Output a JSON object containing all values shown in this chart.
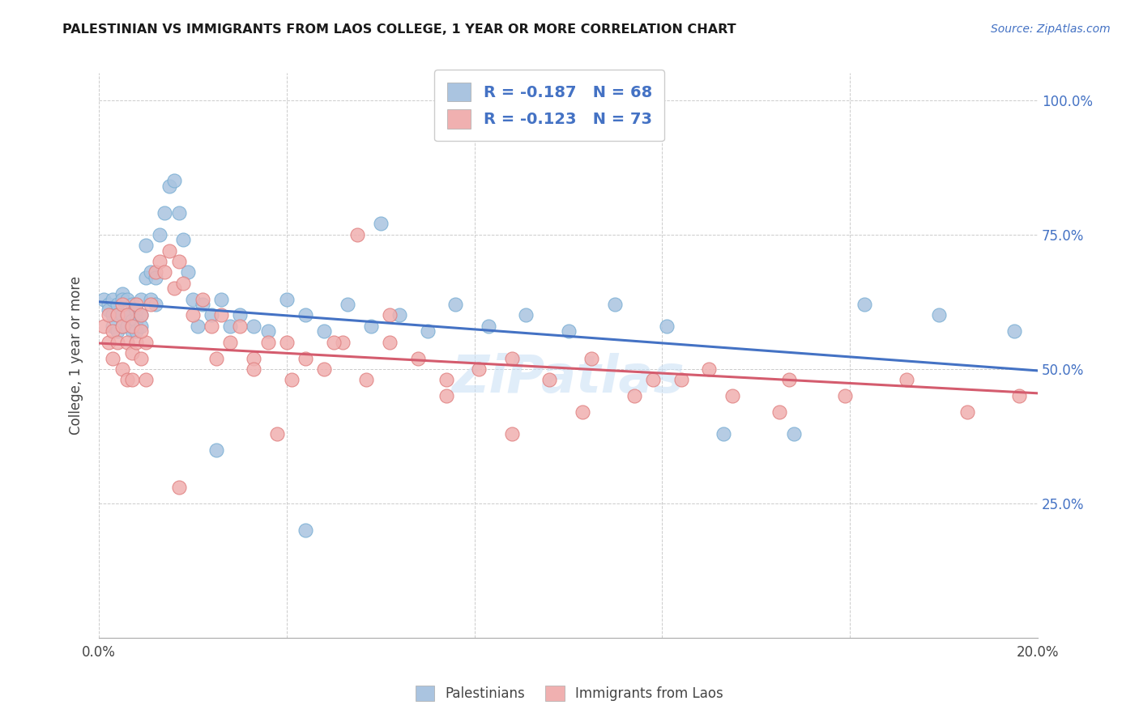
{
  "title": "PALESTINIAN VS IMMIGRANTS FROM LAOS COLLEGE, 1 YEAR OR MORE CORRELATION CHART",
  "source": "Source: ZipAtlas.com",
  "ylabel": "College, 1 year or more",
  "xlim": [
    0.0,
    0.2
  ],
  "ylim": [
    0.0,
    1.05
  ],
  "blue_fill": "#aac4e0",
  "blue_edge": "#7aafd4",
  "pink_fill": "#f0b0b0",
  "pink_edge": "#e08080",
  "blue_line": "#4472c4",
  "pink_line": "#d45c6e",
  "legend_label_blue": "Palestinians",
  "legend_label_pink": "Immigrants from Laos",
  "legend_R_blue": "-0.187",
  "legend_N_blue": "68",
  "legend_R_pink": "-0.123",
  "legend_N_pink": "73",
  "blue_trend_x0": 0.0,
  "blue_trend_y0": 0.625,
  "blue_trend_x1": 0.2,
  "blue_trend_y1": 0.497,
  "pink_trend_x0": 0.0,
  "pink_trend_y0": 0.548,
  "pink_trend_x1": 0.2,
  "pink_trend_y1": 0.455,
  "blue_x": [
    0.001,
    0.002,
    0.002,
    0.003,
    0.003,
    0.003,
    0.004,
    0.004,
    0.004,
    0.005,
    0.005,
    0.005,
    0.005,
    0.006,
    0.006,
    0.006,
    0.007,
    0.007,
    0.007,
    0.008,
    0.008,
    0.008,
    0.009,
    0.009,
    0.009,
    0.01,
    0.01,
    0.011,
    0.011,
    0.012,
    0.012,
    0.013,
    0.014,
    0.015,
    0.016,
    0.017,
    0.018,
    0.019,
    0.02,
    0.021,
    0.022,
    0.024,
    0.026,
    0.028,
    0.03,
    0.033,
    0.036,
    0.04,
    0.044,
    0.048,
    0.053,
    0.058,
    0.064,
    0.07,
    0.076,
    0.083,
    0.091,
    0.1,
    0.11,
    0.121,
    0.133,
    0.148,
    0.163,
    0.179,
    0.195,
    0.044,
    0.025,
    0.06
  ],
  "blue_y": [
    0.63,
    0.62,
    0.61,
    0.63,
    0.6,
    0.58,
    0.62,
    0.6,
    0.57,
    0.64,
    0.63,
    0.6,
    0.58,
    0.63,
    0.6,
    0.58,
    0.62,
    0.59,
    0.57,
    0.61,
    0.59,
    0.57,
    0.63,
    0.6,
    0.58,
    0.67,
    0.73,
    0.68,
    0.63,
    0.67,
    0.62,
    0.75,
    0.79,
    0.84,
    0.85,
    0.79,
    0.74,
    0.68,
    0.63,
    0.58,
    0.62,
    0.6,
    0.63,
    0.58,
    0.6,
    0.58,
    0.57,
    0.63,
    0.6,
    0.57,
    0.62,
    0.58,
    0.6,
    0.57,
    0.62,
    0.58,
    0.6,
    0.57,
    0.62,
    0.58,
    0.38,
    0.38,
    0.62,
    0.6,
    0.57,
    0.2,
    0.35,
    0.77
  ],
  "pink_x": [
    0.001,
    0.002,
    0.002,
    0.003,
    0.003,
    0.004,
    0.004,
    0.005,
    0.005,
    0.005,
    0.006,
    0.006,
    0.006,
    0.007,
    0.007,
    0.007,
    0.008,
    0.008,
    0.009,
    0.009,
    0.01,
    0.01,
    0.011,
    0.012,
    0.013,
    0.014,
    0.015,
    0.016,
    0.017,
    0.018,
    0.02,
    0.022,
    0.024,
    0.026,
    0.028,
    0.03,
    0.033,
    0.036,
    0.04,
    0.044,
    0.048,
    0.052,
    0.057,
    0.062,
    0.068,
    0.074,
    0.081,
    0.088,
    0.096,
    0.105,
    0.114,
    0.124,
    0.135,
    0.147,
    0.159,
    0.172,
    0.185,
    0.196,
    0.025,
    0.033,
    0.041,
    0.05,
    0.062,
    0.074,
    0.088,
    0.103,
    0.118,
    0.13,
    0.145,
    0.017,
    0.009,
    0.038,
    0.055
  ],
  "pink_y": [
    0.58,
    0.6,
    0.55,
    0.57,
    0.52,
    0.6,
    0.55,
    0.62,
    0.58,
    0.5,
    0.6,
    0.55,
    0.48,
    0.58,
    0.53,
    0.48,
    0.62,
    0.55,
    0.6,
    0.52,
    0.55,
    0.48,
    0.62,
    0.68,
    0.7,
    0.68,
    0.72,
    0.65,
    0.7,
    0.66,
    0.6,
    0.63,
    0.58,
    0.6,
    0.55,
    0.58,
    0.52,
    0.55,
    0.55,
    0.52,
    0.5,
    0.55,
    0.48,
    0.55,
    0.52,
    0.48,
    0.5,
    0.52,
    0.48,
    0.52,
    0.45,
    0.48,
    0.45,
    0.48,
    0.45,
    0.48,
    0.42,
    0.45,
    0.52,
    0.5,
    0.48,
    0.55,
    0.6,
    0.45,
    0.38,
    0.42,
    0.48,
    0.5,
    0.42,
    0.28,
    0.57,
    0.38,
    0.75
  ]
}
